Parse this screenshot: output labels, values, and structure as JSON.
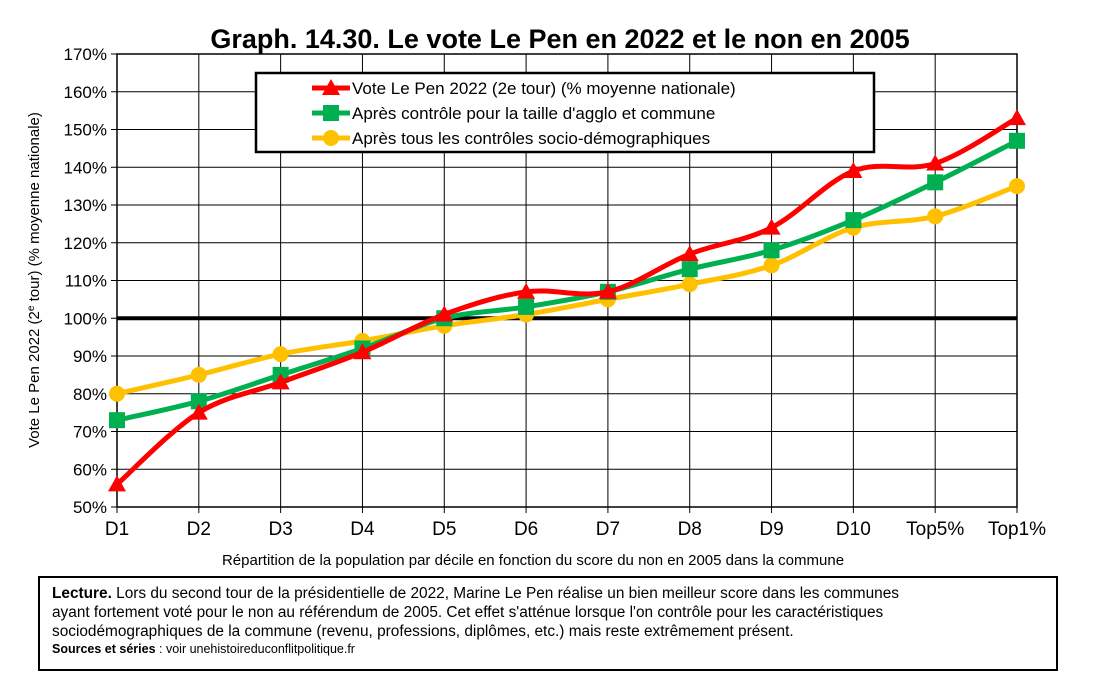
{
  "chart_data": {
    "type": "line",
    "title": "Graph. 14.30. Le vote Le Pen en 2022 et le non en 2005",
    "xlabel": "Répartition de la population par décile en fonction du score du non en 2005 dans la commune",
    "ylabel": "Vote Le Pen 2022 (2e tour) (% moyenne nationale)",
    "categories": [
      "D1",
      "D2",
      "D3",
      "D4",
      "D5",
      "D6",
      "D7",
      "D8",
      "D9",
      "D10",
      "Top5%",
      "Top1%"
    ],
    "ylim": [
      50,
      170
    ],
    "yticks": [
      50,
      60,
      70,
      80,
      90,
      100,
      110,
      120,
      130,
      140,
      150,
      160,
      170
    ],
    "ytick_labels": [
      "50%",
      "60%",
      "70%",
      "80%",
      "90%",
      "100%",
      "110%",
      "120%",
      "130%",
      "140%",
      "150%",
      "160%",
      "170%"
    ],
    "reference_line": 100,
    "grid": true,
    "legend_position": "top-center",
    "series": [
      {
        "name": "Vote Le Pen 2022 (2e tour) (% moyenne nationale)",
        "color": "#ff0000",
        "marker": "triangle",
        "values": [
          56,
          75,
          83,
          91,
          101,
          107,
          107,
          117,
          124,
          139,
          141,
          153
        ]
      },
      {
        "name": "Après contrôle pour la taille d'agglo et commune",
        "color": "#00b050",
        "marker": "square",
        "values": [
          73,
          78,
          85,
          92,
          100,
          103,
          107,
          113,
          118,
          126,
          136,
          147
        ]
      },
      {
        "name": "Après tous les contrôles socio-démographiques",
        "color": "#ffc000",
        "marker": "circle",
        "values": [
          80,
          85,
          90.5,
          94,
          98,
          101,
          105,
          109,
          114,
          124,
          127,
          135
        ]
      }
    ]
  },
  "lecture": {
    "label": "Lecture.",
    "lines": [
      "Lors du second tour de la présidentielle de 2022, Marine Le Pen réalise un bien meilleur score dans les communes",
      "ayant fortement voté pour le non au référendum de 2005. Cet effet s'atténue lorsque l'on contrôle pour les caractéristiques",
      "sociodémographiques de la commune (revenu, professions, diplômes, etc.) mais reste extrêmement présent."
    ],
    "sources_label": "Sources et séries",
    "sources_text": " : voir unehistoireduconflitpolitique.fr"
  }
}
